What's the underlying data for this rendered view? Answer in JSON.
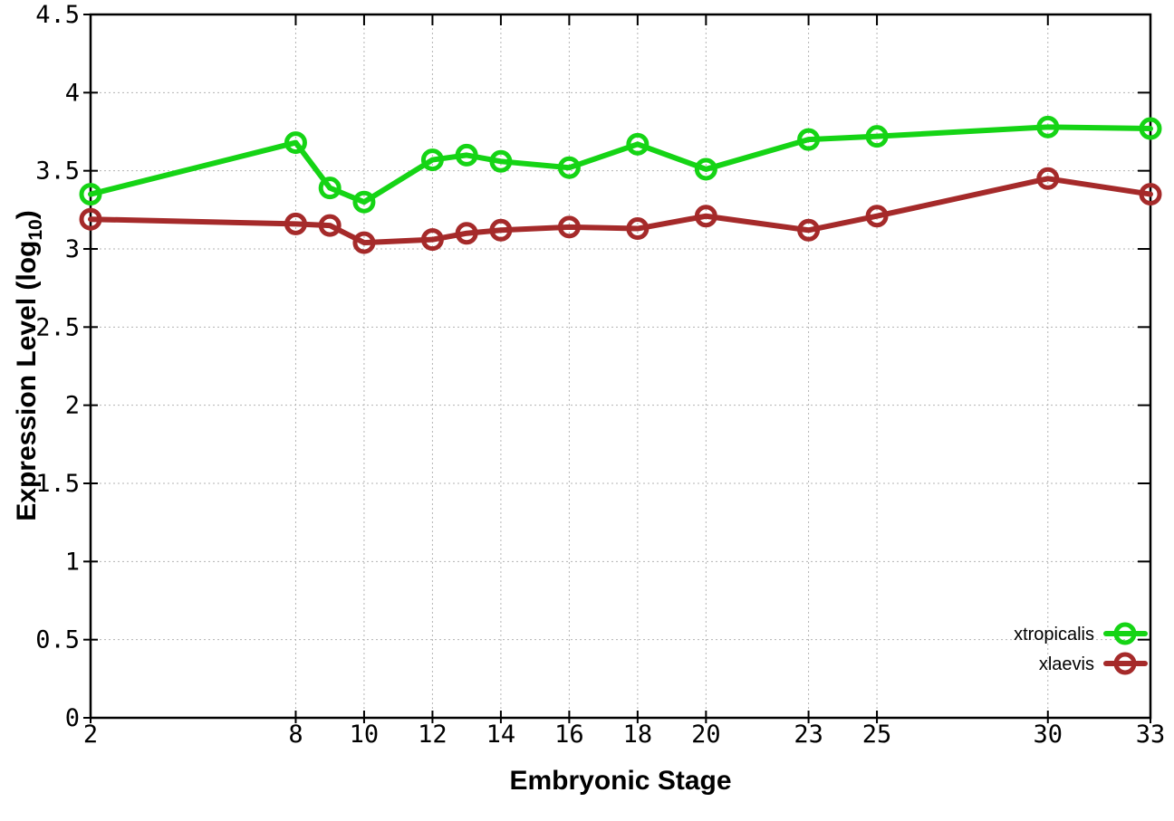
{
  "chart_data": {
    "type": "line",
    "title": "",
    "xlabel": "Embryonic Stage",
    "ylabel_prefix": "Expression Level (log",
    "ylabel_sub": "10",
    "ylabel_suffix": ")",
    "x": [
      2,
      8,
      9,
      10,
      12,
      13,
      14,
      16,
      18,
      20,
      23,
      25,
      30,
      33
    ],
    "series": [
      {
        "name": "xtropicalis",
        "color": "#15d415",
        "values": [
          3.35,
          3.68,
          3.39,
          3.3,
          3.57,
          3.6,
          3.56,
          3.52,
          3.67,
          3.51,
          3.7,
          3.72,
          3.78,
          3.77
        ]
      },
      {
        "name": "xlaevis",
        "color": "#a52a2a",
        "values": [
          3.19,
          3.16,
          3.15,
          3.04,
          3.06,
          3.1,
          3.12,
          3.14,
          3.13,
          3.21,
          3.12,
          3.21,
          3.45,
          3.35
        ]
      }
    ],
    "xlim": [
      2,
      33
    ],
    "ylim": [
      0,
      4.5
    ],
    "x_tick_values": [
      2,
      8,
      10,
      12,
      14,
      16,
      18,
      20,
      23,
      25,
      30,
      33
    ],
    "x_tick_labels": [
      "2",
      "8",
      "10",
      "12",
      "14",
      "16",
      "18",
      "20",
      "23",
      "25",
      "30",
      "33"
    ],
    "y_tick_values": [
      0,
      0.5,
      1,
      1.5,
      2,
      2.5,
      3,
      3.5,
      4,
      4.5
    ],
    "y_tick_labels": [
      "0",
      "0.5",
      "1",
      "1.5",
      "2",
      "2.5",
      "3",
      "3.5",
      "4",
      "4.5"
    ],
    "grid": true,
    "grid_color": "#b3b3b3",
    "axis_color": "#000000",
    "legend_position": "bottom-right",
    "marker": "open-circle"
  }
}
